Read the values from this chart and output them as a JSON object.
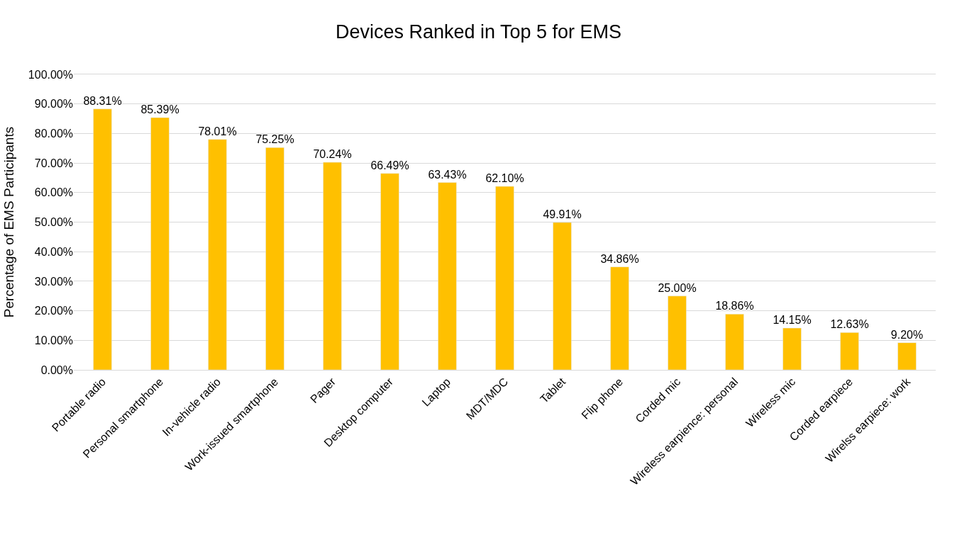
{
  "chart_data": {
    "type": "bar",
    "title": "Devices Ranked in Top 5 for EMS",
    "ylabel": "Percentage of EMS Participants",
    "categories": [
      "Portable radio",
      "Personal smartphone",
      "In-vehicle radio",
      "Work-issued smartphone",
      "Pager",
      "Desktop computer",
      "Laptop",
      "MDT/MDC",
      "Tablet",
      "Flip phone",
      "Corded mic",
      "Wireless earpience: personal",
      "Wireless mic",
      "Corded earpiece",
      "Wirelss earpiece: work"
    ],
    "values": [
      88.31,
      85.39,
      78.01,
      75.25,
      70.24,
      66.49,
      63.43,
      62.1,
      49.91,
      34.86,
      25.0,
      18.86,
      14.15,
      12.63,
      9.2
    ],
    "value_labels": [
      "88.31%",
      "85.39%",
      "78.01%",
      "75.25%",
      "70.24%",
      "66.49%",
      "63.43%",
      "62.10%",
      "49.91%",
      "34.86%",
      "25.00%",
      "18.86%",
      "14.15%",
      "12.63%",
      "9.20%"
    ],
    "color": "#ffc000",
    "ylim": [
      0,
      100
    ],
    "yticks": [
      {
        "value": 0,
        "label": "0.00%"
      },
      {
        "value": 10,
        "label": "10.00%"
      },
      {
        "value": 20,
        "label": "20.00%"
      },
      {
        "value": 30,
        "label": "30.00%"
      },
      {
        "value": 40,
        "label": "40.00%"
      },
      {
        "value": 50,
        "label": "50.00%"
      },
      {
        "value": 60,
        "label": "60.00%"
      },
      {
        "value": 70,
        "label": "70.00%"
      },
      {
        "value": 80,
        "label": "80.00%"
      },
      {
        "value": 90,
        "label": "90.00%"
      },
      {
        "value": 100,
        "label": "100.00%"
      }
    ],
    "grid": "y"
  }
}
